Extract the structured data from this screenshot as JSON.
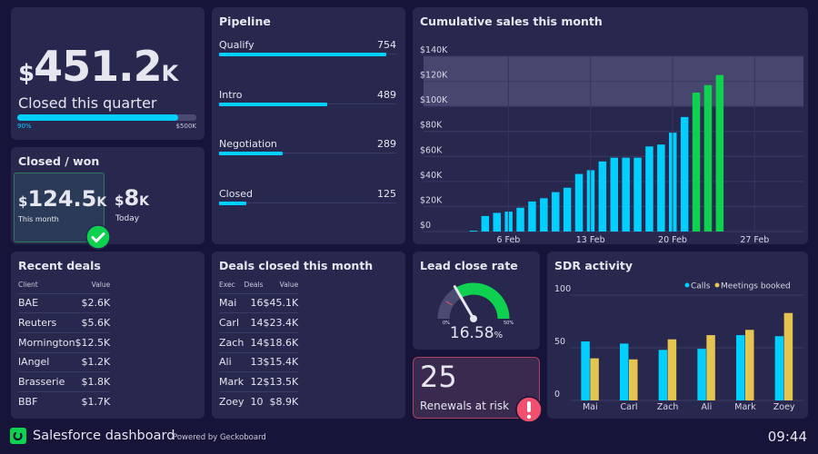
{
  "quarter": {
    "currency": "$",
    "value": "451.2",
    "suffix": "K",
    "label": "Closed this quarter",
    "progress_percent": 90,
    "progress_label": "90%",
    "target_label": "$500K"
  },
  "closed_won": {
    "title": "Closed / won",
    "month": {
      "currency": "$",
      "value": "124.5",
      "suffix": "K",
      "label": "This month"
    },
    "today": {
      "currency": "$",
      "value": "8",
      "suffix": "K",
      "label": "Today"
    },
    "status_icon": "check-circle-icon"
  },
  "pipeline": {
    "title": "Pipeline",
    "max": 800,
    "items": [
      {
        "label": "Qualify",
        "value": 754
      },
      {
        "label": "Intro",
        "value": 489
      },
      {
        "label": "Negotiation",
        "value": 289
      },
      {
        "label": "Closed",
        "value": 125
      }
    ]
  },
  "recent_deals": {
    "title": "Recent deals",
    "headers": [
      "Client",
      "Value"
    ],
    "rows": [
      [
        "BAE",
        "$2.6K"
      ],
      [
        "Reuters",
        "$5.6K"
      ],
      [
        "Mornington",
        "$12.5K"
      ],
      [
        "lAngel",
        "$1.2K"
      ],
      [
        "Brasserie",
        "$1.8K"
      ],
      [
        "BBF",
        "$1.7K"
      ]
    ]
  },
  "deals_closed": {
    "title": "Deals closed this month",
    "headers": [
      "Exec",
      "Deals",
      "Value"
    ],
    "rows": [
      [
        "Mai",
        "16",
        "$45.1K"
      ],
      [
        "Carl",
        "14",
        "$23.4K"
      ],
      [
        "Zach",
        "14",
        "$18.6K"
      ],
      [
        "Ali",
        "13",
        "$15.4K"
      ],
      [
        "Mark",
        "12",
        "$13.5K"
      ],
      [
        "Zoey",
        "10",
        "$8.9K"
      ]
    ]
  },
  "lead_close": {
    "title": "Lead close rate",
    "value": "16.58",
    "unit": "%",
    "numeric": 16.58,
    "min_label": "0%",
    "max_label": "50%",
    "min": 0,
    "max": 50,
    "colors": {
      "track": "#4a4a73",
      "good": "#0fd150"
    }
  },
  "renewals": {
    "value": "25",
    "label": "Renewals at risk",
    "alert_icon": "alert-circle-icon",
    "color": "#f0506e"
  },
  "footer": {
    "title": "Salesforce dashboard",
    "powered": "Powered by Geckoboard",
    "time": "09:44",
    "logo_icon": "geckoboard-logo-icon"
  },
  "chart_data": [
    {
      "type": "bar",
      "title": "Cumulative sales this month",
      "x": [
        "3 Feb",
        "4 Feb",
        "5 Feb",
        "6 Feb",
        "7 Feb",
        "8 Feb",
        "9 Feb",
        "10 Feb",
        "11 Feb",
        "12 Feb",
        "13 Feb",
        "14 Feb",
        "15 Feb",
        "16 Feb",
        "17 Feb",
        "18 Feb",
        "19 Feb",
        "20 Feb",
        "21 Feb",
        "22 Feb",
        "23 Feb",
        "24 Feb"
      ],
      "values": [
        700,
        12400,
        14900,
        15900,
        19000,
        24000,
        26600,
        31500,
        35000,
        46000,
        49000,
        56000,
        59000,
        59000,
        59000,
        68000,
        69500,
        79000,
        91500,
        111000,
        117000,
        125000
      ],
      "x_tick_labels": [
        "6 Feb",
        "13 Feb",
        "20 Feb",
        "27 Feb"
      ],
      "y_tick_labels": [
        "$0",
        "$20K",
        "$40K",
        "$60K",
        "$80K",
        "$100K",
        "$120K",
        "$140K"
      ],
      "ylim": [
        0,
        140000
      ],
      "target_band": [
        100000,
        140000
      ],
      "colors": {
        "below": "#00cfff",
        "above": "#0fd150",
        "band": "#46466e"
      },
      "grid": true
    },
    {
      "type": "bar",
      "title": "SDR activity",
      "categories": [
        "Mai",
        "Carl",
        "Zach",
        "Ali",
        "Mark",
        "Zoey"
      ],
      "series": [
        {
          "name": "Calls",
          "values": [
            56,
            54,
            48,
            49,
            62,
            61
          ],
          "color": "#00cfff"
        },
        {
          "name": "Meetings booked",
          "values": [
            40,
            39,
            58,
            62,
            67,
            83
          ],
          "color": "#e6c450"
        }
      ],
      "y_tick_labels": [
        "0",
        "50",
        "100"
      ],
      "ylim": [
        0,
        100
      ],
      "legend": "top-right",
      "grid": true
    }
  ]
}
